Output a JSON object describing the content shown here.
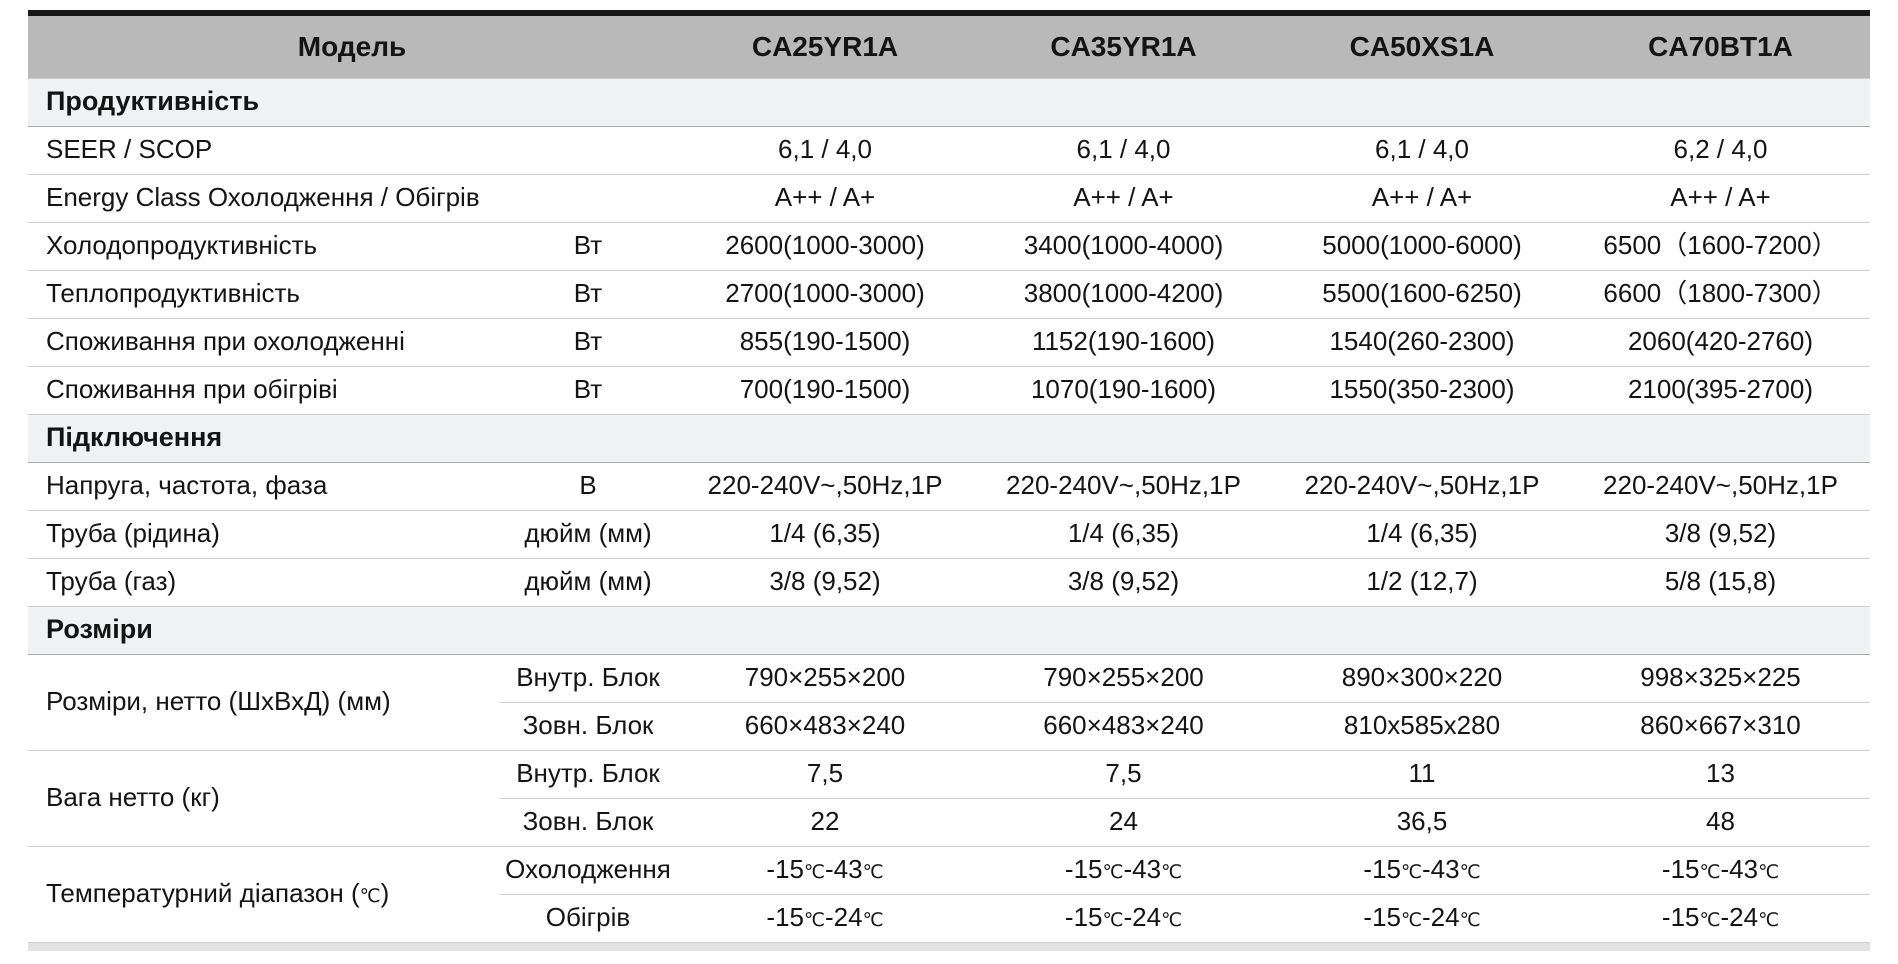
{
  "colors": {
    "top_bar": "#181818",
    "header_bg": "#b9b9b9",
    "section_bg": "#f0f1f2",
    "row_line": "#cdcdcd",
    "section_line": "#a9a9a9",
    "bottom_bar": "#e2e2e2",
    "text": "#141414"
  },
  "table": {
    "header": {
      "model_label": "Модель",
      "models": [
        "CA25YR1A",
        "CA35YR1A",
        "CA50XS1A",
        "CA70BT1A"
      ]
    },
    "sections": [
      {
        "title": "Продуктивність",
        "rows": [
          {
            "label": "SEER / SCOP",
            "unit": "",
            "values": [
              "6,1 / 4,0",
              "6,1 / 4,0",
              "6,1 / 4,0",
              "6,2 / 4,0"
            ]
          },
          {
            "label": "Energy Class Охолодження / Обігрів",
            "unit": "",
            "values": [
              "A++ / A+",
              "A++ / A+",
              "A++ / A+",
              "A++ / A+"
            ]
          },
          {
            "label": "Холодопродуктивність",
            "unit": "Вт",
            "values": [
              "2600(1000-3000)",
              "3400(1000-4000)",
              "5000(1000-6000)",
              "6500（1600-7200）"
            ]
          },
          {
            "label": "Теплопродуктивність",
            "unit": "Вт",
            "values": [
              "2700(1000-3000)",
              "3800(1000-4200)",
              "5500(1600-6250)",
              "6600（1800-7300）"
            ]
          },
          {
            "label": "Споживання при охолодженні",
            "unit": "Вт",
            "values": [
              "855(190-1500)",
              "1152(190-1600)",
              "1540(260-2300)",
              "2060(420-2760)"
            ]
          },
          {
            "label": "Споживання при обігріві",
            "unit": "Вт",
            "values": [
              "700(190-1500)",
              "1070(190-1600)",
              "1550(350-2300)",
              "2100(395-2700)"
            ]
          }
        ]
      },
      {
        "title": "Підключення",
        "rows": [
          {
            "label": "Напруга, частота, фаза",
            "unit": "В",
            "values": [
              "220-240V~,50Hz,1P",
              "220-240V~,50Hz,1P",
              "220-240V~,50Hz,1P",
              "220-240V~,50Hz,1P"
            ]
          },
          {
            "label": "Труба (рідина)",
            "unit": "дюйм (мм)",
            "values": [
              "1/4 (6,35)",
              "1/4 (6,35)",
              "1/4 (6,35)",
              "3/8 (9,52)"
            ]
          },
          {
            "label": "Труба (газ)",
            "unit": "дюйм (мм)",
            "values": [
              "3/8 (9,52)",
              "3/8 (9,52)",
              "1/2 (12,7)",
              "5/8 (15,8)"
            ]
          }
        ]
      },
      {
        "title": "Розміри",
        "groups": [
          {
            "label": "Розміри, нетто (ШхВхД) (мм)",
            "subrows": [
              {
                "sublabel": "Внутр. Блок",
                "values": [
                  "790×255×200",
                  "790×255×200",
                  "890×300×220",
                  "998×325×225"
                ]
              },
              {
                "sublabel": "Зовн. Блок",
                "values": [
                  "660×483×240",
                  "660×483×240",
                  "810x585x280",
                  "860×667×310"
                ]
              }
            ]
          },
          {
            "label": "Вага нетто (кг)",
            "subrows": [
              {
                "sublabel": "Внутр. Блок",
                "values": [
                  "7,5",
                  "7,5",
                  "11",
                  "13"
                ]
              },
              {
                "sublabel": "Зовн. Блок",
                "values": [
                  "22",
                  "24",
                  "36,5",
                  "48"
                ]
              }
            ]
          },
          {
            "label": "Температурний діапазон (℃)",
            "subrows": [
              {
                "sublabel": "Охолодження",
                "values": [
                  "-15℃-43℃",
                  "-15℃-43℃",
                  "-15℃-43℃",
                  "-15℃-43℃"
                ]
              },
              {
                "sublabel": "Обігрів",
                "values": [
                  "-15℃-24℃",
                  "-15℃-24℃",
                  "-15℃-24℃",
                  "-15℃-24℃"
                ]
              }
            ]
          }
        ]
      }
    ]
  }
}
